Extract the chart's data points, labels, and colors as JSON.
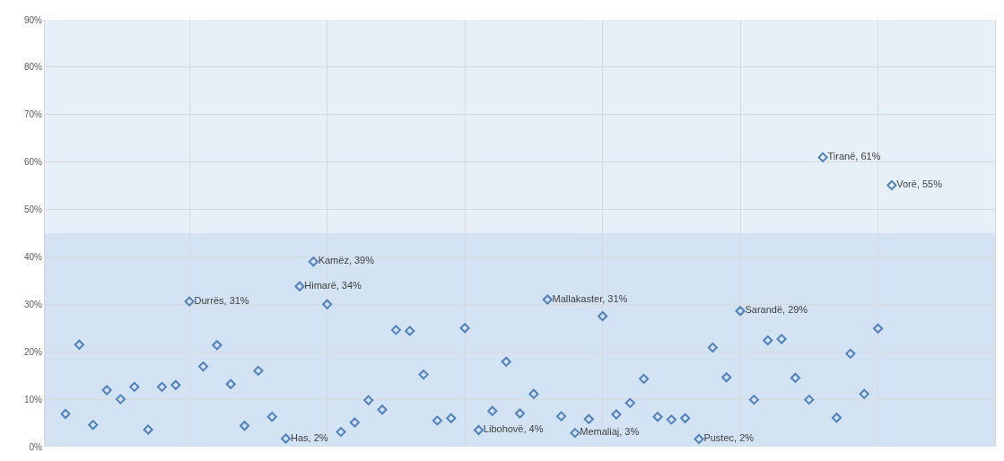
{
  "chart_data": {
    "type": "scatter",
    "categories": [
      null,
      null,
      null,
      null,
      null,
      null,
      null,
      null,
      null,
      null,
      null,
      null,
      null,
      null,
      null,
      null,
      null,
      null,
      null,
      null,
      null,
      null,
      null,
      null,
      null,
      null,
      null,
      null,
      null,
      null,
      null,
      null,
      null,
      null,
      null,
      null,
      null,
      null,
      null,
      null,
      null,
      null,
      null,
      null,
      null,
      null,
      null,
      null,
      null,
      null,
      null,
      null,
      null,
      null,
      null,
      null,
      null,
      null,
      null,
      null,
      null,
      null,
      null,
      null,
      null,
      null,
      null,
      null,
      null
    ],
    "series": [
      {
        "color": "#4f81bd",
        "values": [
          null,
          6.9,
          21.5,
          4.6,
          11.9,
          10.0,
          12.6,
          3.6,
          12.6,
          13.0,
          30.6,
          16.9,
          21.4,
          13.2,
          4.4,
          16.0,
          6.3,
          1.7,
          33.8,
          39.0,
          30.0,
          3.1,
          5.1,
          9.8,
          7.8,
          24.6,
          24.4,
          15.2,
          5.5,
          6.0,
          25.0,
          3.5,
          7.5,
          17.9,
          7.0,
          11.1,
          31.0,
          6.4,
          2.9,
          5.8,
          27.5,
          6.8,
          9.2,
          14.3,
          6.3,
          5.7,
          6.0,
          1.6,
          20.9,
          14.6,
          28.6,
          9.9,
          22.4,
          22.7,
          14.5,
          9.9,
          61.0,
          6.1,
          19.6,
          11.1,
          24.9,
          55.1,
          null,
          null,
          null,
          null,
          null,
          null,
          null
        ],
        "value_labels": [
          null,
          null,
          null,
          null,
          null,
          null,
          null,
          null,
          null,
          null,
          "Durrës, 31%",
          null,
          null,
          null,
          null,
          null,
          null,
          "Has, 2%",
          "Himarë, 34%",
          "Kamëz, 39%",
          null,
          null,
          null,
          null,
          null,
          null,
          null,
          null,
          null,
          null,
          null,
          "Libohovë, 4%",
          null,
          null,
          null,
          null,
          "Mallakaster, 31%",
          null,
          "Memaliaj, 3%",
          null,
          null,
          null,
          null,
          null,
          null,
          null,
          null,
          "Pustec, 2%",
          null,
          null,
          "Sarandë, 29%",
          null,
          null,
          null,
          null,
          null,
          "Tiranë, 61%",
          null,
          null,
          null,
          null,
          "Vorë, 55%",
          null,
          null,
          null,
          null,
          null,
          null,
          null
        ]
      }
    ],
    "ylim": [
      0,
      90
    ],
    "yticks": [
      {
        "value": 0,
        "label": "0%"
      },
      {
        "value": 10,
        "label": "10%"
      },
      {
        "value": 20,
        "label": "20%"
      },
      {
        "value": 30,
        "label": "30%"
      },
      {
        "value": 40,
        "label": "40%"
      },
      {
        "value": 50,
        "label": "50%"
      },
      {
        "value": 60,
        "label": "60%"
      },
      {
        "value": 70,
        "label": "70%"
      },
      {
        "value": 80,
        "label": "80%"
      },
      {
        "value": 90,
        "label": "90%"
      }
    ],
    "tick_labels": "y",
    "marker": "diamond",
    "grid": true
  }
}
